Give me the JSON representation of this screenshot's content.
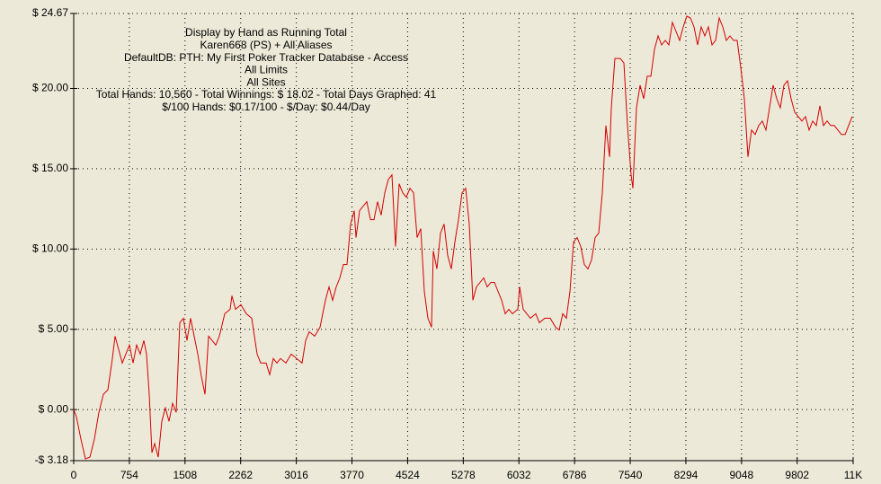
{
  "chart_data": {
    "type": "line",
    "annotations": [
      "Display by Hand as Running Total",
      "Karen668 (PS) + All Aliases",
      "DefaultDB: PTH: My First Poker Tracker Database - Access",
      "All Limits",
      "All Sites",
      "Total Hands: 10,560 - Total Winnings: $ 18.02 - Total Days Graphed: 41",
      "$/100 Hands: $0.17/100 - $/Day: $0.44/Day"
    ],
    "xlim": [
      0,
      10560
    ],
    "xticks": [
      0,
      754,
      1508,
      2262,
      3016,
      3770,
      4524,
      5278,
      6032,
      6786,
      7540,
      8294,
      9048,
      9802,
      {
        "value": 10560,
        "label": "11K"
      }
    ],
    "ylim": [
      -3.18,
      24.67
    ],
    "yticks": [
      {
        "value": -3.18,
        "label": "-$ 3.18"
      },
      {
        "value": 0,
        "label": "$ 0.00"
      },
      {
        "value": 5,
        "label": "$ 5.00"
      },
      {
        "value": 10,
        "label": "$ 10.00"
      },
      {
        "value": 15,
        "label": "$ 15.00"
      },
      {
        "value": 20,
        "label": "$ 20.00"
      },
      {
        "value": 24.67,
        "label": "$ 24.67"
      }
    ],
    "grid": true,
    "x": [
      0,
      37,
      97,
      158,
      219,
      280,
      341,
      402,
      463,
      524,
      560,
      609,
      658,
      706,
      755,
      804,
      853,
      901,
      950,
      987,
      1023,
      1060,
      1096,
      1145,
      1194,
      1242,
      1291,
      1340,
      1389,
      1437,
      1486,
      1535,
      1584,
      1632,
      1681,
      1730,
      1778,
      1827,
      1876,
      1924,
      1973,
      2046,
      2119,
      2144,
      2192,
      2265,
      2339,
      2412,
      2485,
      2533,
      2606,
      2655,
      2704,
      2753,
      2801,
      2874,
      2948,
      3021,
      3094,
      3142,
      3191,
      3264,
      3337,
      3410,
      3459,
      3508,
      3557,
      3605,
      3654,
      3703,
      3751,
      3800,
      3825,
      3873,
      3922,
      3971,
      4020,
      4068,
      4117,
      4166,
      4214,
      4263,
      4312,
      4360,
      4409,
      4458,
      4507,
      4555,
      4604,
      4653,
      4701,
      4750,
      4799,
      4848,
      4872,
      4921,
      4969,
      5018,
      5067,
      5116,
      5164,
      5213,
      5262,
      5310,
      5359,
      5408,
      5457,
      5505,
      5554,
      5603,
      5652,
      5700,
      5749,
      5798,
      5846,
      5895,
      5944,
      6017,
      6041,
      6090,
      6139,
      6187,
      6261,
      6309,
      6382,
      6455,
      6528,
      6577,
      6626,
      6675,
      6723,
      6772,
      6821,
      6870,
      6918,
      6967,
      7016,
      7064,
      7113,
      7162,
      7211,
      7259,
      7284,
      7332,
      7405,
      7454,
      7503,
      7552,
      7576,
      7625,
      7673,
      7722,
      7771,
      7820,
      7868,
      7917,
      7966,
      8014,
      8063,
      8112,
      8161,
      8209,
      8258,
      8307,
      8355,
      8404,
      8453,
      8502,
      8550,
      8599,
      8648,
      8696,
      8745,
      8794,
      8843,
      8891,
      8940,
      8989,
      9037,
      9086,
      9135,
      9184,
      9232,
      9281,
      9330,
      9379,
      9427,
      9476,
      9525,
      9573,
      9622,
      9671,
      9720,
      9768,
      9817,
      9866,
      9914,
      9963,
      10012,
      10061,
      10109,
      10158,
      10207,
      10256,
      10304,
      10353,
      10402,
      10451,
      10499,
      10548
    ],
    "series": [
      {
        "color": "#d40000",
        "values": [
          0,
          -0.45,
          -1.84,
          -3.07,
          -2.96,
          -1.84,
          -0.17,
          0.95,
          1.23,
          3.18,
          4.57,
          3.74,
          2.9,
          3.46,
          4.02,
          2.9,
          4.02,
          3.46,
          4.3,
          3.46,
          0.95,
          -2.68,
          -2.12,
          -2.96,
          -0.73,
          0.11,
          -0.73,
          0.39,
          -0.17,
          5.41,
          5.69,
          4.3,
          5.69,
          4.57,
          3.46,
          2.06,
          0.95,
          4.57,
          4.3,
          4.02,
          4.57,
          5.97,
          6.25,
          7.09,
          6.25,
          6.53,
          5.97,
          5.69,
          3.46,
          2.9,
          2.9,
          2.18,
          3.18,
          2.9,
          3.18,
          2.9,
          3.46,
          3.18,
          2.9,
          4.3,
          4.85,
          4.57,
          5.13,
          6.81,
          7.64,
          6.81,
          7.64,
          8.2,
          9.04,
          9.04,
          11.55,
          12.39,
          10.71,
          12.39,
          12.67,
          12.95,
          11.83,
          11.83,
          12.95,
          12.11,
          13.5,
          14.34,
          14.62,
          10.16,
          14.06,
          13.5,
          13.23,
          13.78,
          13.5,
          10.71,
          11.27,
          7.36,
          5.69,
          5.13,
          9.88,
          8.76,
          10.99,
          11.55,
          9.6,
          8.76,
          10.44,
          11.83,
          13.5,
          13.78,
          11.55,
          6.81,
          7.64,
          7.92,
          8.2,
          7.64,
          7.92,
          7.92,
          7.36,
          6.81,
          5.97,
          6.25,
          5.97,
          6.25,
          7.64,
          6.25,
          5.97,
          5.69,
          5.97,
          5.41,
          5.69,
          5.69,
          5.13,
          4.96,
          5.97,
          5.69,
          7.36,
          10.44,
          10.71,
          10.16,
          9.04,
          8.76,
          9.32,
          10.71,
          10.99,
          13.5,
          17.69,
          15.74,
          18.8,
          21.87,
          21.87,
          21.59,
          17.69,
          14.62,
          13.78,
          18.8,
          20.2,
          19.36,
          20.76,
          20.76,
          22.43,
          23.27,
          22.71,
          22.99,
          22.71,
          24.11,
          23.55,
          22.99,
          23.83,
          24.5,
          24.39,
          23.83,
          22.71,
          23.83,
          23.27,
          23.83,
          22.71,
          22.99,
          24.39,
          23.83,
          22.99,
          23.27,
          22.99,
          22.99,
          21.31,
          19.36,
          15.74,
          17.41,
          17.13,
          17.69,
          17.97,
          17.41,
          18.8,
          20.2,
          19.36,
          18.8,
          20.2,
          20.48,
          19.36,
          18.52,
          18.25,
          17.97,
          18.25,
          17.41,
          17.97,
          17.69,
          18.92,
          17.69,
          17.97,
          17.69,
          17.69,
          17.41,
          17.13,
          17.13,
          17.69,
          18.25
        ]
      }
    ]
  }
}
